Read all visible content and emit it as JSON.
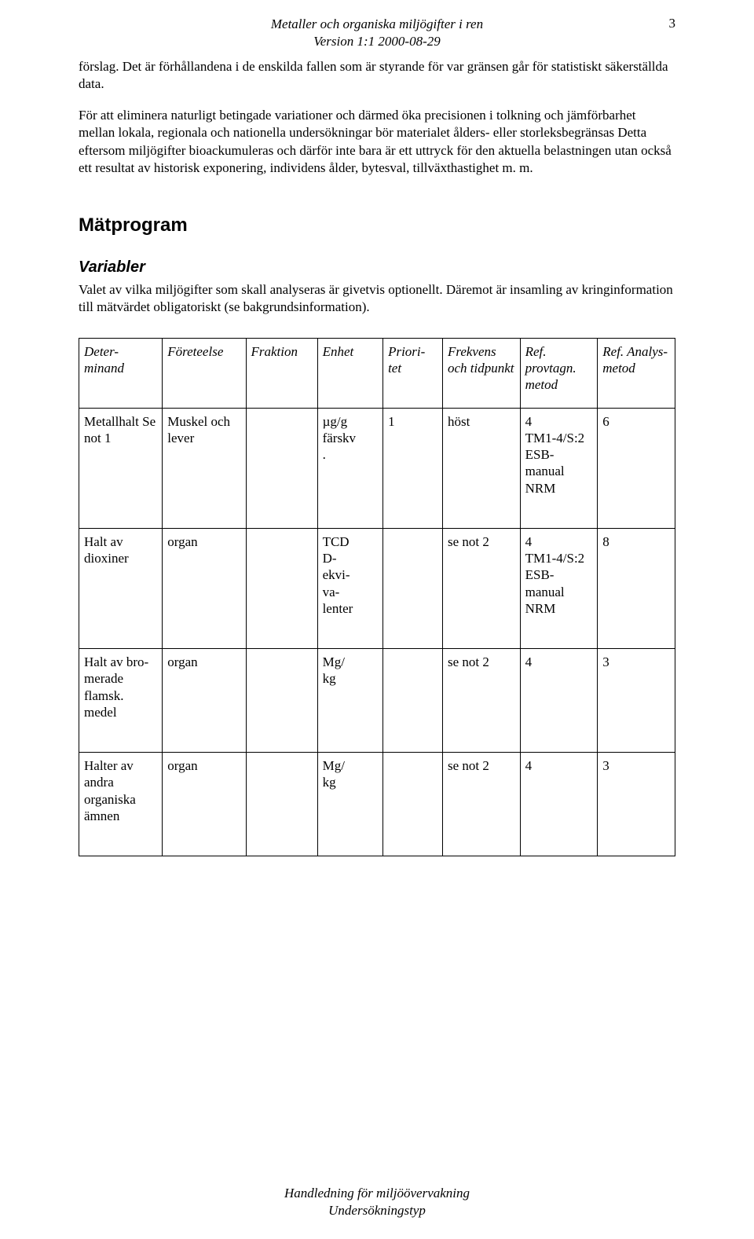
{
  "header": {
    "line1": "Metaller och organiska miljögifter i ren",
    "line2": "Version 1:1 2000-08-29",
    "page_number": "3"
  },
  "paragraphs": {
    "p1": "förslag. Det är förhållandena i de enskilda fallen som är styrande för var gränsen går för statistiskt säkerställda data.",
    "p2": "För att eliminera naturligt betingade variationer och därmed öka precisionen i tolkning och jämförbarhet mellan lokala, regionala och nationella undersökningar bör materialet ålders- eller storleksbegränsas Detta eftersom miljögifter bioackumuleras och därför inte bara är ett uttryck för den aktuella belastningen utan också ett resultat av historisk exponering, individens ålder, bytesval, tillväxthastighet m. m."
  },
  "sections": {
    "matprogram": "Mätprogram",
    "variabler": "Variabler",
    "variabler_body": "Valet av vilka miljögifter som skall analyseras är givetvis optionellt. Däremot är insamling av kringinformation till mätvärdet obligatoriskt (se bakgrundsinformation)."
  },
  "table": {
    "headers": {
      "c0": "Deter-\nminand",
      "c1": "Företeelse",
      "c2": "Fraktion",
      "c3": "Enhet",
      "c4": "Priori-\ntet",
      "c5": "Frekvens och tidpunkt",
      "c6": "Ref. provtagn. metod",
      "c7": "Ref. Analys-\nmetod"
    },
    "rows": [
      {
        "c0": "Metallhalt Se not 1",
        "c1": "Muskel och lever",
        "c2": "",
        "c3": "µg/g färskv\n.",
        "c4": "1",
        "c5": "höst",
        "c6": "4\nTM1-4/S:2\nESB-manual NRM",
        "c7": "6"
      },
      {
        "c0": "Halt av dioxiner",
        "c1": "organ",
        "c2": "",
        "c3": "TCD\nD-\nekvi-\nva-\nlenter",
        "c4": "",
        "c5": "se not 2",
        "c6": "4\nTM1-4/S:2\nESB-manual NRM",
        "c7": "8"
      },
      {
        "c0": "Halt av bro-\nmerade flamsk. medel",
        "c1": "organ",
        "c2": "",
        "c3": "Mg/\nkg",
        "c4": "",
        "c5": "se not 2",
        "c6": "4",
        "c7": "3"
      },
      {
        "c0": "Halter av andra organiska ämnen",
        "c1": "organ",
        "c2": "",
        "c3": "Mg/\nkg",
        "c4": "",
        "c5": "se not 2",
        "c6": "4",
        "c7": "3"
      }
    ]
  },
  "footer": {
    "line1": "Handledning för miljöövervakning",
    "line2": "Undersökningstyp"
  }
}
